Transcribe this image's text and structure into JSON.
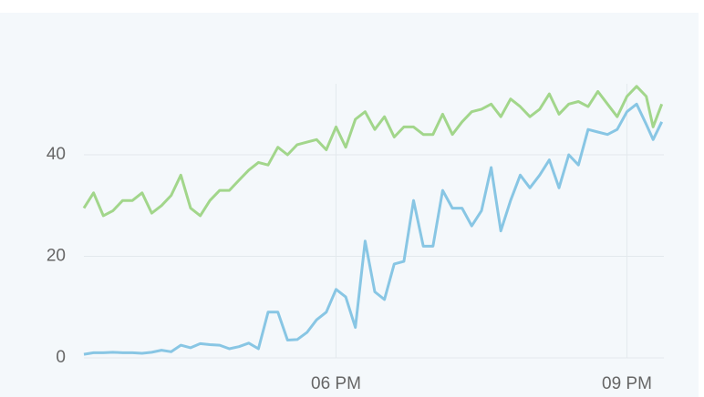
{
  "chart_data": {
    "type": "line",
    "x": [
      15.4,
      15.5,
      15.6,
      15.7,
      15.8,
      15.9,
      16.0,
      16.1,
      16.2,
      16.3,
      16.4,
      16.5,
      16.6,
      16.7,
      16.8,
      16.9,
      17.0,
      17.1,
      17.2,
      17.3,
      17.4,
      17.5,
      17.6,
      17.7,
      17.8,
      17.9,
      18.0,
      18.1,
      18.2,
      18.3,
      18.4,
      18.5,
      18.6,
      18.7,
      18.8,
      18.9,
      19.0,
      19.1,
      19.2,
      19.3,
      19.4,
      19.5,
      19.6,
      19.7,
      19.8,
      19.9,
      20.0,
      20.1,
      20.2,
      20.3,
      20.4,
      20.5,
      20.6,
      20.7,
      20.8,
      20.9,
      21.0,
      21.1,
      21.2,
      21.27,
      21.36
    ],
    "series": [
      {
        "color": "#a2d68b",
        "values": [
          29.5,
          32.5,
          28,
          29,
          31,
          31,
          32.5,
          28.5,
          30,
          32,
          36,
          29.5,
          28,
          31,
          33,
          33,
          35,
          37,
          38.5,
          38,
          41.5,
          40,
          42,
          42.5,
          43,
          41,
          45.5,
          41.5,
          47,
          48.5,
          45,
          47.5,
          43.5,
          45.5,
          45.5,
          44,
          44,
          48,
          44,
          46.5,
          48.5,
          49,
          50,
          47.5,
          51,
          49.5,
          47.5,
          49,
          52,
          48,
          50,
          50.5,
          49.5,
          52.5,
          50,
          47.5,
          51.5,
          53.5,
          51.5,
          45.5,
          50
        ]
      },
      {
        "color": "#88c6e4",
        "values": [
          0.7,
          1,
          1,
          1.1,
          1,
          1,
          0.9,
          1.1,
          1.5,
          1.2,
          2.5,
          2,
          2.8,
          2.6,
          2.5,
          1.8,
          2.2,
          2.9,
          1.8,
          9,
          9,
          3.5,
          3.6,
          5,
          7.5,
          9,
          13.5,
          12,
          6,
          23,
          13,
          11.5,
          18.5,
          19,
          31,
          22,
          22,
          33,
          29.5,
          29.5,
          26,
          29,
          37.5,
          25,
          31,
          36,
          33.5,
          36,
          39,
          33.5,
          40,
          38,
          45,
          44.5,
          44,
          45,
          48.5,
          50,
          46,
          43,
          46.5
        ]
      }
    ],
    "xlim": [
      15.4,
      21.4
    ],
    "ylim": [
      0,
      54
    ],
    "xticks": [
      {
        "value": 18,
        "label": "06 PM"
      },
      {
        "value": 21,
        "label": "09 PM"
      }
    ],
    "yticks": [
      0,
      20,
      40
    ],
    "grid": true
  }
}
